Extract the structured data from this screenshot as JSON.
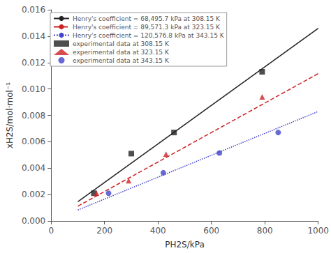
{
  "chart_data": {
    "type": "line",
    "xlabel": "PH2S/kPa",
    "ylabel": "xH2S/mol·mol⁻¹",
    "xlim": [
      0,
      1000
    ],
    "xticks": [
      0,
      200,
      400,
      600,
      800,
      1000
    ],
    "ylim": [
      0,
      0.016
    ],
    "yticks": [
      {
        "value": 0,
        "label": "0.000"
      },
      {
        "value": 0.002,
        "label": "0.002"
      },
      {
        "value": 0.004,
        "label": "0.004"
      },
      {
        "value": 0.006,
        "label": "0.006"
      },
      {
        "value": 0.008,
        "label": "0.008"
      },
      {
        "value": 0.01,
        "label": "0.010"
      },
      {
        "value": 0.012,
        "label": "0.012"
      },
      {
        "value": 0.014,
        "label": "0.014"
      },
      {
        "value": 0.016,
        "label": "0.016"
      }
    ],
    "grid": false,
    "legend": "upper left",
    "series": [
      {
        "name": "Henry's coefficient = 68,495.7 kPa at 308.15 K",
        "type": "line",
        "line_style": "solid",
        "color": "#222222",
        "x": [
          100,
          1000
        ],
        "values": [
          0.0014599457,
          0.014599457
        ]
      },
      {
        "name": "Henry's coefficient = 89,571.3 kPa at 323.15 K",
        "type": "line",
        "line_style": "dashed",
        "color": "#cc2222",
        "x": [
          100,
          1000
        ],
        "values": [
          0.001116429,
          0.01116429
        ]
      },
      {
        "name": "Henry's coefficient = 120,576.8 kPa at 343.15 K",
        "type": "line",
        "line_style": "dotted",
        "color": "#4444cc",
        "x": [
          100,
          1000
        ],
        "values": [
          0.00082934694,
          0.0082934694
        ]
      },
      {
        "name": "experimental data at 308.15 K",
        "type": "scatter",
        "marker": "square",
        "color": "#222222",
        "x": [
          160,
          300,
          460,
          790
        ],
        "values": [
          0.0021,
          0.0051,
          0.0067,
          0.0113
        ]
      },
      {
        "name": "experimental data at 323.15 K",
        "type": "scatter",
        "marker": "triangle",
        "color": "#cc2222",
        "x": [
          170,
          290,
          430,
          790
        ],
        "values": [
          0.0021,
          0.00305,
          0.00505,
          0.0094
        ]
      },
      {
        "name": "experimental data at 343.15 K",
        "type": "scatter",
        "marker": "circle",
        "color": "#4444cc",
        "x": [
          215,
          420,
          630,
          850
        ],
        "values": [
          0.0021,
          0.00365,
          0.00515,
          0.0067
        ]
      }
    ]
  }
}
